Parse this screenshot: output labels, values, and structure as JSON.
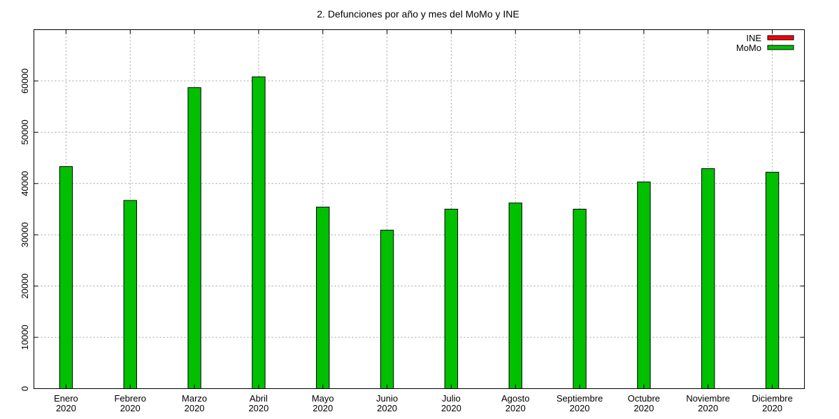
{
  "chart_data": {
    "type": "bar",
    "title": "2. Defunciones por año y mes del MoMo y INE",
    "xlabel": "",
    "ylabel": "",
    "categories": [
      [
        "Enero",
        "2020"
      ],
      [
        "Febrero",
        "2020"
      ],
      [
        "Marzo",
        "2020"
      ],
      [
        "Abril",
        "2020"
      ],
      [
        "Mayo",
        "2020"
      ],
      [
        "Junio",
        "2020"
      ],
      [
        "Julio",
        "2020"
      ],
      [
        "Agosto",
        "2020"
      ],
      [
        "Septiembre",
        "2020"
      ],
      [
        "Octubre",
        "2020"
      ],
      [
        "Noviembre",
        "2020"
      ],
      [
        "Diciembre",
        "2020"
      ]
    ],
    "series": [
      {
        "name": "INE",
        "color": "#ff0000",
        "values": [
          null,
          null,
          null,
          null,
          null,
          null,
          null,
          null,
          null,
          null,
          null,
          null
        ]
      },
      {
        "name": "MoMo",
        "color": "#00c000",
        "values": [
          43300,
          36700,
          58700,
          60800,
          35400,
          30900,
          35000,
          36200,
          35000,
          40300,
          42900,
          42200
        ]
      }
    ],
    "ylim": [
      0,
      70000
    ],
    "yticks": [
      0,
      10000,
      20000,
      30000,
      40000,
      50000,
      60000
    ],
    "grid": true,
    "legend_position": "top-right"
  }
}
